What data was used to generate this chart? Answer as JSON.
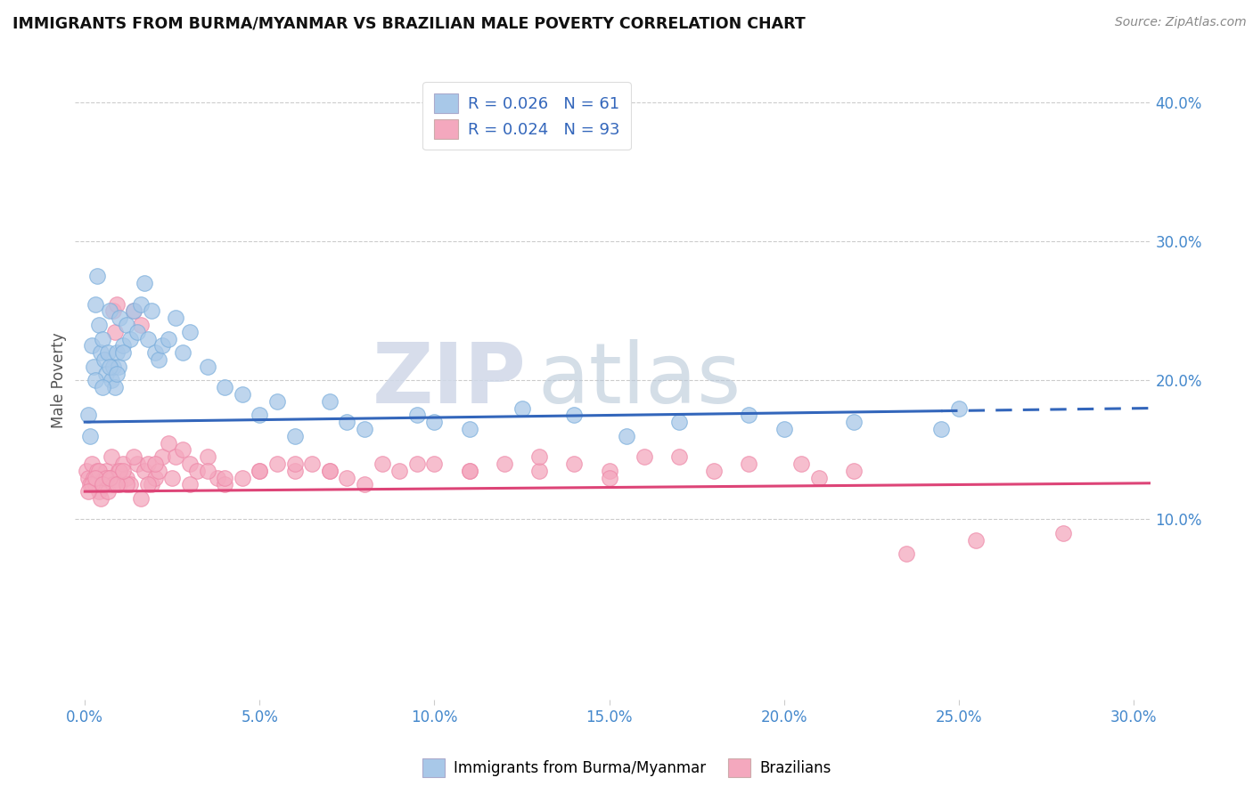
{
  "title": "IMMIGRANTS FROM BURMA/MYANMAR VS BRAZILIAN MALE POVERTY CORRELATION CHART",
  "source": "Source: ZipAtlas.com",
  "ylabel": "Male Poverty",
  "x_tick_labels": [
    "0.0%",
    "5.0%",
    "10.0%",
    "15.0%",
    "20.0%",
    "25.0%",
    "30.0%"
  ],
  "x_tick_vals": [
    0.0,
    5.0,
    10.0,
    15.0,
    20.0,
    25.0,
    30.0
  ],
  "y_tick_labels": [
    "10.0%",
    "20.0%",
    "30.0%",
    "40.0%"
  ],
  "y_tick_vals": [
    10.0,
    20.0,
    30.0,
    40.0
  ],
  "xlim": [
    -0.3,
    30.5
  ],
  "ylim": [
    -3.0,
    43.0
  ],
  "blue_R": 0.026,
  "blue_N": 61,
  "pink_R": 0.024,
  "pink_N": 93,
  "blue_color": "#a8c8e8",
  "pink_color": "#f4a8be",
  "blue_edge_color": "#7aaedc",
  "pink_edge_color": "#ee88a8",
  "blue_line_color": "#3366bb",
  "pink_line_color": "#dd4477",
  "legend_label_blue": "Immigrants from Burma/Myanmar",
  "legend_label_pink": "Brazilians",
  "watermark_zip": "ZIP",
  "watermark_atlas": "atlas",
  "background_color": "#ffffff",
  "blue_scatter_x": [
    0.1,
    0.15,
    0.2,
    0.25,
    0.3,
    0.35,
    0.4,
    0.45,
    0.5,
    0.55,
    0.6,
    0.65,
    0.7,
    0.75,
    0.8,
    0.85,
    0.9,
    0.95,
    1.0,
    1.1,
    1.2,
    1.3,
    1.4,
    1.5,
    1.6,
    1.7,
    1.8,
    1.9,
    2.0,
    2.1,
    2.2,
    2.4,
    2.6,
    2.8,
    3.0,
    3.5,
    4.0,
    4.5,
    5.0,
    5.5,
    6.0,
    7.0,
    7.5,
    8.0,
    9.5,
    10.0,
    11.0,
    12.5,
    14.0,
    15.5,
    17.0,
    19.0,
    20.0,
    22.0,
    24.5,
    25.0,
    0.3,
    0.5,
    0.7,
    0.9,
    1.1
  ],
  "blue_scatter_y": [
    17.5,
    16.0,
    22.5,
    21.0,
    25.5,
    27.5,
    24.0,
    22.0,
    23.0,
    21.5,
    20.5,
    22.0,
    25.0,
    20.0,
    21.0,
    19.5,
    22.0,
    21.0,
    24.5,
    22.5,
    24.0,
    23.0,
    25.0,
    23.5,
    25.5,
    27.0,
    23.0,
    25.0,
    22.0,
    21.5,
    22.5,
    23.0,
    24.5,
    22.0,
    23.5,
    21.0,
    19.5,
    19.0,
    17.5,
    18.5,
    16.0,
    18.5,
    17.0,
    16.5,
    17.5,
    17.0,
    16.5,
    18.0,
    17.5,
    16.0,
    17.0,
    17.5,
    16.5,
    17.0,
    16.5,
    18.0,
    20.0,
    19.5,
    21.0,
    20.5,
    22.0
  ],
  "pink_scatter_x": [
    0.05,
    0.1,
    0.15,
    0.2,
    0.25,
    0.3,
    0.35,
    0.4,
    0.45,
    0.5,
    0.55,
    0.6,
    0.65,
    0.7,
    0.75,
    0.8,
    0.85,
    0.9,
    0.95,
    1.0,
    1.1,
    1.2,
    1.3,
    1.4,
    1.5,
    1.6,
    1.7,
    1.8,
    1.9,
    2.0,
    2.1,
    2.2,
    2.4,
    2.6,
    2.8,
    3.0,
    3.2,
    3.5,
    3.8,
    4.0,
    4.5,
    5.0,
    5.5,
    6.0,
    6.5,
    7.0,
    7.5,
    8.5,
    9.0,
    10.0,
    11.0,
    12.0,
    13.0,
    14.0,
    15.0,
    16.0,
    18.0,
    20.5,
    22.0,
    28.0,
    0.2,
    0.4,
    0.6,
    0.8,
    1.0,
    1.2,
    1.4,
    1.6,
    1.8,
    2.0,
    2.5,
    3.0,
    3.5,
    4.0,
    5.0,
    6.0,
    7.0,
    8.0,
    9.5,
    11.0,
    13.0,
    15.0,
    17.0,
    19.0,
    21.0,
    23.5,
    25.5,
    0.1,
    0.3,
    0.5,
    0.7,
    0.9,
    1.1
  ],
  "pink_scatter_y": [
    13.5,
    13.0,
    12.5,
    14.0,
    13.0,
    12.5,
    13.5,
    12.0,
    11.5,
    12.5,
    13.0,
    13.5,
    12.0,
    13.0,
    14.5,
    25.0,
    23.5,
    25.5,
    13.5,
    12.5,
    14.0,
    13.0,
    12.5,
    25.0,
    14.0,
    24.0,
    13.5,
    14.0,
    12.5,
    13.0,
    13.5,
    14.5,
    15.5,
    14.5,
    15.0,
    14.0,
    13.5,
    14.5,
    13.0,
    12.5,
    13.0,
    13.5,
    14.0,
    13.5,
    14.0,
    13.5,
    13.0,
    14.0,
    13.5,
    14.0,
    13.5,
    14.0,
    13.5,
    14.0,
    13.5,
    14.5,
    13.5,
    14.0,
    13.5,
    9.0,
    12.5,
    13.5,
    13.0,
    12.5,
    13.5,
    12.5,
    14.5,
    11.5,
    12.5,
    14.0,
    13.0,
    12.5,
    13.5,
    13.0,
    13.5,
    14.0,
    13.5,
    12.5,
    14.0,
    13.5,
    14.5,
    13.0,
    14.5,
    14.0,
    13.0,
    7.5,
    8.5,
    12.0,
    13.0,
    12.5,
    13.0,
    12.5,
    13.5
  ],
  "blue_trend_x0": 0.0,
  "blue_trend_x1": 24.5,
  "blue_trend_y0": 17.0,
  "blue_trend_y1": 17.8,
  "blue_trend_dash_x0": 24.5,
  "blue_trend_dash_x1": 30.5,
  "blue_trend_dash_y0": 17.8,
  "blue_trend_dash_y1": 18.0,
  "pink_trend_x0": 0.0,
  "pink_trend_x1": 30.5,
  "pink_trend_y0": 12.0,
  "pink_trend_y1": 12.6
}
